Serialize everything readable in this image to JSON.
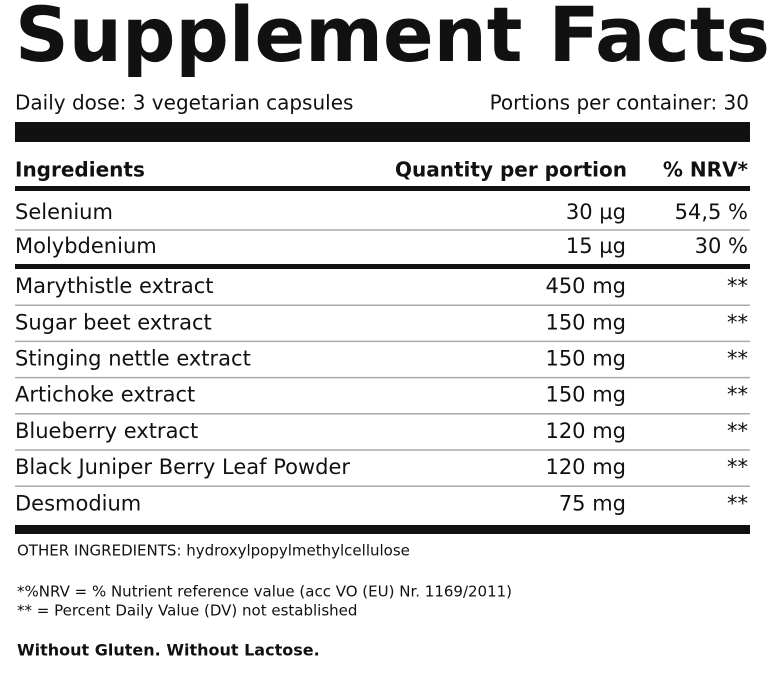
{
  "header": {
    "title": "Supplement Facts",
    "dose": "Daily dose: 3 vegetarian capsules",
    "portions": "Portions per container: 30"
  },
  "table": {
    "columns": [
      "Ingredients",
      "Quantity per portion",
      "% NRV*"
    ],
    "groups": [
      [
        [
          "Selenium",
          "30 µg",
          "54,5 %"
        ],
        [
          "Molybdenium",
          "15 µg",
          "30 %"
        ]
      ],
      [
        [
          "Marythistle extract",
          "450 mg",
          "**"
        ],
        [
          "Sugar beet extract",
          "150 mg",
          "**"
        ],
        [
          "Stinging nettle extract",
          "150 mg",
          "**"
        ],
        [
          "Artichoke extract",
          "150 mg",
          "**"
        ],
        [
          "Blueberry extract",
          "120 mg",
          "**"
        ],
        [
          "Black Juniper Berry Leaf Powder",
          "120 mg",
          "**"
        ],
        [
          "Desmodium",
          "75 mg",
          "**"
        ]
      ]
    ]
  },
  "footer": {
    "other_ingredients": "OTHER INGREDIENTS: hydroxylpopylmethylcellulose",
    "notes": [
      "*%NRV = % Nutrient reference value (acc VO (EU) Nr. 1169/2011)",
      "** = Percent Daily Value (DV) not established"
    ],
    "claim": "Without Gluten. Without Lactose."
  }
}
